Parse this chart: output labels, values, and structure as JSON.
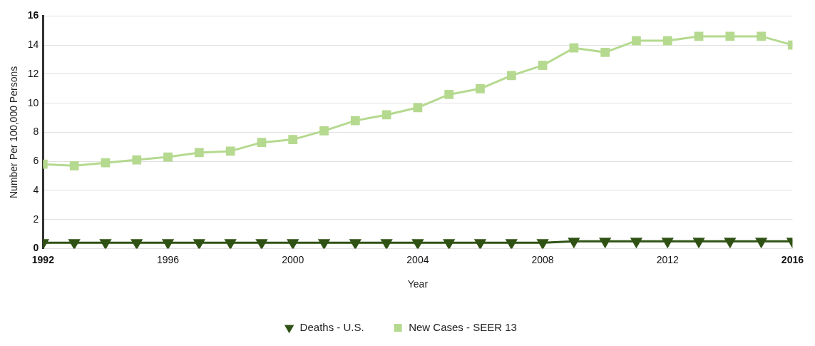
{
  "chart_data": {
    "type": "line",
    "xlabel": "Year",
    "ylabel": "Number Per 100,000 Persons",
    "x": [
      1992,
      1993,
      1994,
      1995,
      1996,
      1997,
      1998,
      1999,
      2000,
      2001,
      2002,
      2003,
      2004,
      2005,
      2006,
      2007,
      2008,
      2009,
      2010,
      2011,
      2012,
      2013,
      2014,
      2015,
      2016
    ],
    "series": [
      {
        "name": "New Cases - SEER 13",
        "color": "#b5d98f",
        "marker": "square",
        "values": [
          5.8,
          5.7,
          5.9,
          6.1,
          6.3,
          6.6,
          6.7,
          7.3,
          7.5,
          8.1,
          8.8,
          9.2,
          9.7,
          10.6,
          11.0,
          11.9,
          12.6,
          13.8,
          13.5,
          14.3,
          14.3,
          14.6,
          14.6,
          14.6,
          14.0
        ]
      },
      {
        "name": "Deaths - U.S.",
        "color": "#2f5214",
        "marker": "triangle",
        "values": [
          0.4,
          0.4,
          0.4,
          0.4,
          0.4,
          0.4,
          0.4,
          0.4,
          0.4,
          0.4,
          0.4,
          0.4,
          0.4,
          0.4,
          0.4,
          0.4,
          0.4,
          0.5,
          0.5,
          0.5,
          0.5,
          0.5,
          0.5,
          0.5,
          0.5
        ]
      }
    ],
    "xlim": [
      1992,
      2016
    ],
    "xticks": [
      1992,
      1996,
      2000,
      2004,
      2008,
      2012,
      2016
    ],
    "ylim": [
      0,
      16
    ],
    "yticks": [
      0,
      2,
      4,
      6,
      8,
      10,
      12,
      14,
      16
    ],
    "grid": "y",
    "legend": "bottom",
    "line_style": "solid"
  }
}
